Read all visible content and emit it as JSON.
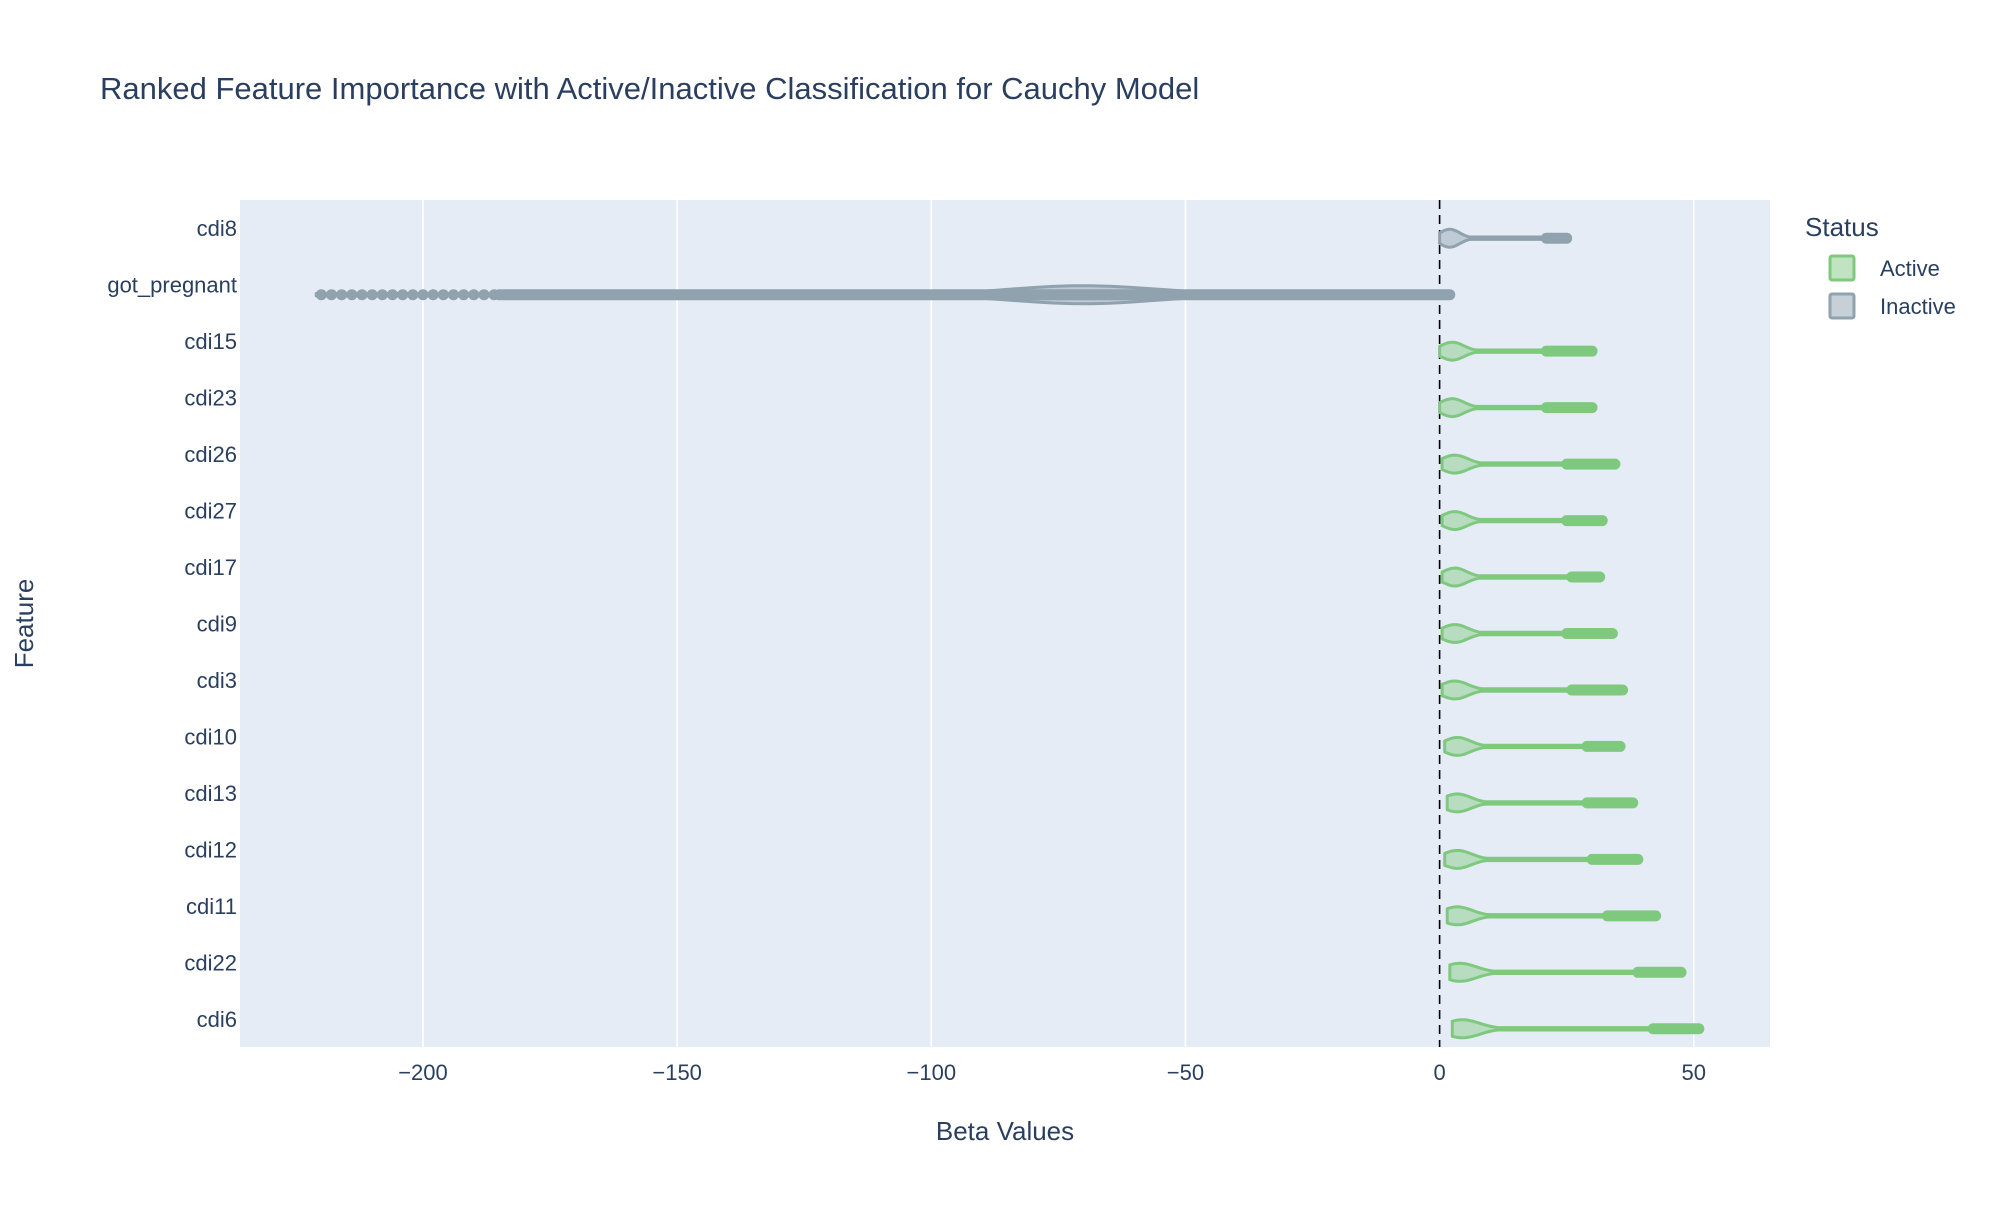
{
  "chart_data": {
    "type": "violin",
    "title": "Ranked Feature Importance with Active/Inactive Classification for Cauchy Model",
    "xlabel": "Beta Values",
    "ylabel": "Feature",
    "xlim": [
      -236,
      65
    ],
    "x_ticks": [
      -200,
      -150,
      -100,
      -50,
      0,
      50
    ],
    "x_tick_labels": [
      "−200",
      "−150",
      "−100",
      "−50",
      "0",
      "50"
    ],
    "reference_line": 0,
    "grid": true,
    "legend": {
      "title": "Status",
      "placement": "top-right",
      "entries": [
        {
          "name": "Active",
          "color": "#7fc97f"
        },
        {
          "name": "Inactive",
          "color": "#8fa2ad"
        }
      ]
    },
    "features": [
      {
        "name": "cdi8",
        "status": "Inactive",
        "min": 0,
        "max": 25,
        "box_start": 21,
        "bulge": 2,
        "outliers": []
      },
      {
        "name": "got_pregnant",
        "status": "Inactive",
        "min": -221,
        "max": 2,
        "box_start": -185,
        "bulge": -70,
        "outliers": [
          -220,
          -218,
          -216,
          -214,
          -212,
          -210,
          -208,
          -206,
          -204,
          -202,
          -200,
          -198,
          -196,
          -194,
          -192,
          -190,
          -188,
          -186
        ]
      },
      {
        "name": "cdi15",
        "status": "Active",
        "min": 0,
        "max": 30,
        "box_start": 21,
        "bulge": 2.5,
        "outliers": []
      },
      {
        "name": "cdi23",
        "status": "Active",
        "min": 0,
        "max": 30,
        "box_start": 21,
        "bulge": 2.5,
        "outliers": []
      },
      {
        "name": "cdi26",
        "status": "Active",
        "min": 0.5,
        "max": 34.5,
        "box_start": 25,
        "bulge": 3,
        "outliers": []
      },
      {
        "name": "cdi27",
        "status": "Active",
        "min": 0.5,
        "max": 32,
        "box_start": 25,
        "bulge": 3,
        "outliers": []
      },
      {
        "name": "cdi17",
        "status": "Active",
        "min": 0.5,
        "max": 31.5,
        "box_start": 26,
        "bulge": 3,
        "outliers": []
      },
      {
        "name": "cdi9",
        "status": "Active",
        "min": 0.5,
        "max": 34,
        "box_start": 25,
        "bulge": 3,
        "outliers": []
      },
      {
        "name": "cdi3",
        "status": "Active",
        "min": 0.5,
        "max": 36,
        "box_start": 26,
        "bulge": 3,
        "outliers": []
      },
      {
        "name": "cdi10",
        "status": "Active",
        "min": 1,
        "max": 35.5,
        "box_start": 29,
        "bulge": 3.5,
        "outliers": []
      },
      {
        "name": "cdi13",
        "status": "Active",
        "min": 1.5,
        "max": 38,
        "box_start": 29,
        "bulge": 3.5,
        "outliers": []
      },
      {
        "name": "cdi12",
        "status": "Active",
        "min": 1,
        "max": 39,
        "box_start": 30,
        "bulge": 3.5,
        "outliers": []
      },
      {
        "name": "cdi11",
        "status": "Active",
        "min": 1.5,
        "max": 42.5,
        "box_start": 33,
        "bulge": 3.5,
        "outliers": []
      },
      {
        "name": "cdi22",
        "status": "Active",
        "min": 2,
        "max": 47.5,
        "box_start": 39,
        "bulge": 4,
        "outliers": []
      },
      {
        "name": "cdi6",
        "status": "Active",
        "min": 2.5,
        "max": 51,
        "box_start": 42,
        "bulge": 4.5,
        "outliers": []
      }
    ]
  }
}
